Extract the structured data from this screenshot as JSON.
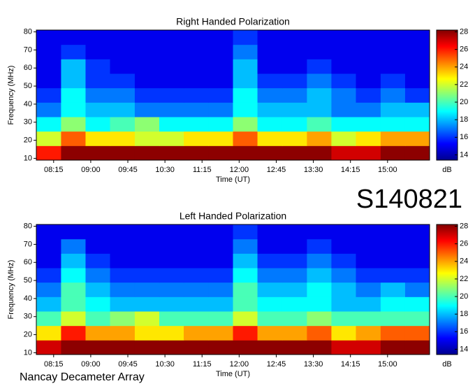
{
  "label": "S140821",
  "footer": "Nancay Decameter Array",
  "chart_data": [
    {
      "type": "heatmap",
      "title": "Right Handed Polarization",
      "x_label": "Time (UT)",
      "y_label": "Frequency (MHz)",
      "colorbar_label": "dB",
      "xlim": [
        7.9,
        15.85
      ],
      "ylim": [
        9,
        81
      ],
      "zlim": [
        13.4,
        28.2
      ],
      "xticks": [
        {
          "value": 8.25,
          "label": "08:15"
        },
        {
          "value": 9,
          "label": "09:00"
        },
        {
          "value": 9.75,
          "label": "09:45"
        },
        {
          "value": 10.5,
          "label": "10:30"
        },
        {
          "value": 11.25,
          "label": "11:15"
        },
        {
          "value": 12,
          "label": "12:00"
        },
        {
          "value": 12.75,
          "label": "12:45"
        },
        {
          "value": 13.5,
          "label": "13:30"
        },
        {
          "value": 14.25,
          "label": "14:15"
        },
        {
          "value": 15,
          "label": "15:00"
        }
      ],
      "yticks": [
        10,
        20,
        30,
        40,
        50,
        60,
        70,
        80
      ],
      "zticks": [
        14,
        16,
        18,
        20,
        22,
        24,
        26,
        28
      ],
      "x": [
        8.15,
        8.65,
        9.14,
        9.64,
        10.14,
        10.63,
        11.13,
        11.63,
        12.12,
        12.62,
        13.12,
        13.62,
        14.11,
        14.61,
        15.11,
        15.6
      ],
      "y": [
        13,
        21,
        29,
        37,
        45,
        53,
        61,
        69,
        77
      ],
      "z": [
        [
          26,
          28,
          28,
          28,
          28,
          28,
          28,
          28,
          28,
          28,
          28,
          28,
          27,
          27,
          28,
          28
        ],
        [
          22,
          25,
          23,
          23,
          22,
          22,
          23,
          23,
          25,
          23,
          23,
          24,
          22,
          23,
          24,
          24
        ],
        [
          19,
          21,
          19,
          20,
          21,
          19,
          19,
          19,
          21,
          19,
          19,
          20,
          19,
          19,
          19,
          19
        ],
        [
          17,
          19,
          18,
          18,
          17,
          17,
          17,
          17,
          19,
          18,
          18,
          18,
          17,
          17,
          18,
          18
        ],
        [
          16,
          19,
          17,
          17,
          16,
          16,
          16,
          16,
          19,
          17,
          17,
          18,
          17,
          16,
          17,
          16
        ],
        [
          15,
          18,
          16,
          16,
          15,
          15,
          15,
          15,
          18,
          16,
          16,
          17,
          16,
          15,
          16,
          15
        ],
        [
          15,
          18,
          16,
          15,
          15,
          15,
          15,
          15,
          18,
          15,
          15,
          16,
          15,
          15,
          15,
          15
        ],
        [
          15,
          16,
          15,
          15,
          15,
          15,
          15,
          15,
          17,
          15,
          15,
          15,
          15,
          15,
          15,
          15
        ],
        [
          15,
          15,
          15,
          15,
          15,
          15,
          15,
          15,
          16,
          15,
          15,
          15,
          15,
          15,
          15,
          15
        ]
      ]
    },
    {
      "type": "heatmap",
      "title": "Left Handed Polarization",
      "x_label": "Time (UT)",
      "y_label": "Frequency (MHz)",
      "colorbar_label": "dB",
      "xlim": [
        7.9,
        15.85
      ],
      "ylim": [
        9,
        81
      ],
      "zlim": [
        13.4,
        28.2
      ],
      "xticks": [
        {
          "value": 8.25,
          "label": "08:15"
        },
        {
          "value": 9,
          "label": "09:00"
        },
        {
          "value": 9.75,
          "label": "09:45"
        },
        {
          "value": 10.5,
          "label": "10:30"
        },
        {
          "value": 11.25,
          "label": "11:15"
        },
        {
          "value": 12,
          "label": "12:00"
        },
        {
          "value": 12.75,
          "label": "12:45"
        },
        {
          "value": 13.5,
          "label": "13:30"
        },
        {
          "value": 14.25,
          "label": "14:15"
        },
        {
          "value": 15,
          "label": "15:00"
        }
      ],
      "yticks": [
        10,
        20,
        30,
        40,
        50,
        60,
        70,
        80
      ],
      "zticks": [
        14,
        16,
        18,
        20,
        22,
        24,
        26,
        28
      ],
      "x": [
        8.15,
        8.65,
        9.14,
        9.64,
        10.14,
        10.63,
        11.13,
        11.63,
        12.12,
        12.62,
        13.12,
        13.62,
        14.11,
        14.61,
        15.11,
        15.6
      ],
      "y": [
        13,
        21,
        29,
        37,
        45,
        53,
        61,
        69,
        77
      ],
      "z": [
        [
          27,
          28,
          28,
          28,
          28,
          28,
          28,
          28,
          28,
          28,
          28,
          28,
          27,
          27,
          28,
          28
        ],
        [
          23,
          26,
          24,
          24,
          23,
          23,
          24,
          24,
          26,
          24,
          24,
          25,
          23,
          24,
          25,
          25
        ],
        [
          20,
          22,
          20,
          21,
          22,
          20,
          20,
          20,
          22,
          20,
          20,
          21,
          20,
          20,
          20,
          20
        ],
        [
          18,
          20,
          19,
          18,
          18,
          18,
          18,
          18,
          20,
          19,
          19,
          19,
          18,
          18,
          19,
          19
        ],
        [
          17,
          20,
          18,
          17,
          17,
          17,
          17,
          17,
          20,
          18,
          18,
          19,
          18,
          17,
          18,
          17
        ],
        [
          16,
          19,
          17,
          16,
          16,
          16,
          16,
          16,
          19,
          17,
          17,
          18,
          17,
          16,
          16,
          16
        ],
        [
          15,
          18,
          16,
          15,
          15,
          15,
          15,
          15,
          18,
          16,
          16,
          17,
          16,
          15,
          15,
          15
        ],
        [
          15,
          17,
          15,
          15,
          15,
          15,
          15,
          15,
          17,
          15,
          15,
          16,
          15,
          15,
          15,
          15
        ],
        [
          15,
          15,
          15,
          15,
          15,
          15,
          15,
          15,
          16,
          15,
          15,
          15,
          15,
          15,
          15,
          15
        ]
      ]
    }
  ]
}
